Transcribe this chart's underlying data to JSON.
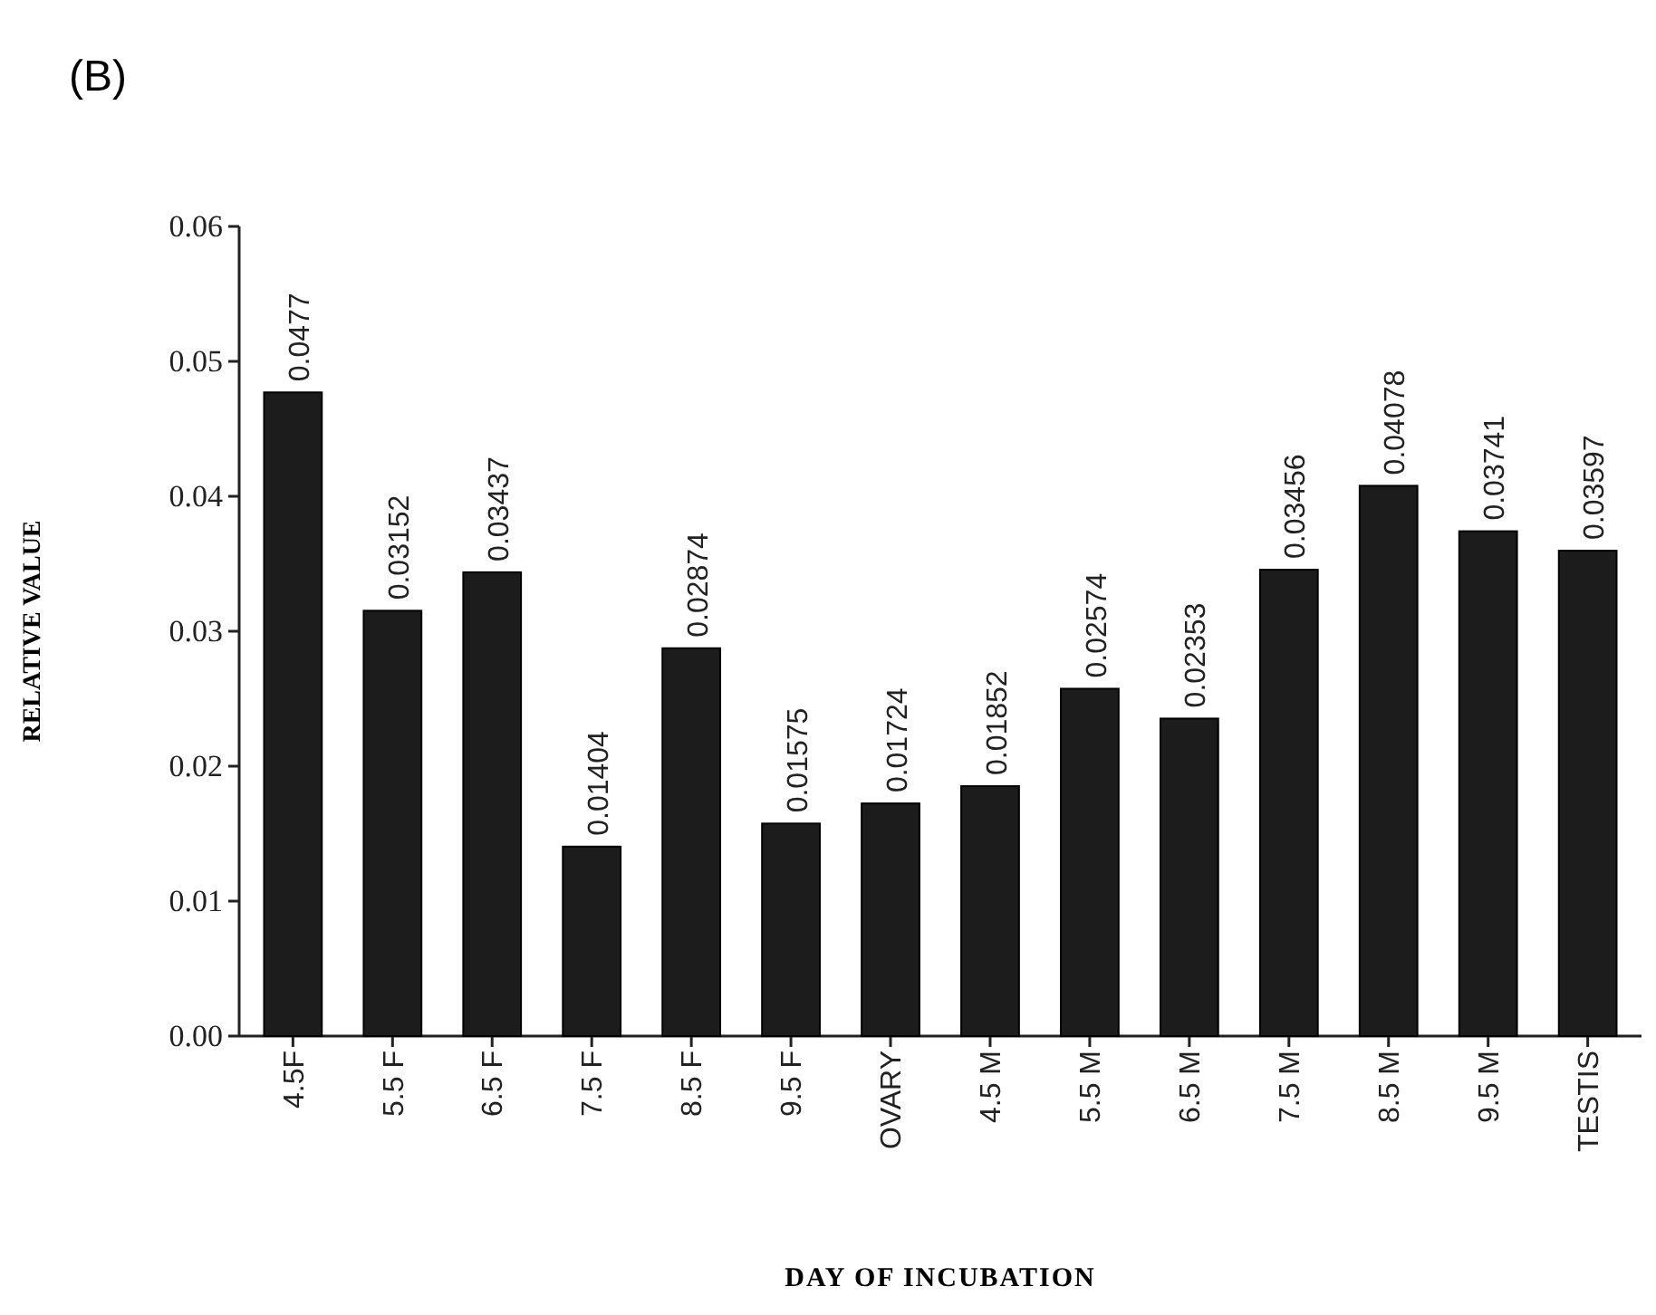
{
  "chart_data": {
    "type": "bar",
    "title": "(B)",
    "xlabel": "DAY OF INCUBATION",
    "ylabel": "RELATIVE VALUE",
    "categories": [
      "4.5F",
      "5.5 F",
      "6.5 F",
      "7.5 F",
      "8.5 F",
      "9.5 F",
      "OVARY",
      "4.5 M",
      "5.5 M",
      "6.5 M",
      "7.5 M",
      "8.5 M",
      "9.5 M",
      "TESTIS"
    ],
    "values": [
      0.0477,
      0.03152,
      0.03437,
      0.01404,
      0.02874,
      0.01575,
      0.01724,
      0.01852,
      0.02574,
      0.02353,
      0.03456,
      0.04078,
      0.03741,
      0.03597
    ],
    "color": "#1c1c1c",
    "data_labels": true,
    "ylim": [
      0,
      0.06
    ],
    "yticks": [
      {
        "value": 0,
        "label": "0.00"
      },
      0.01,
      0.02,
      0.03,
      0.04,
      0.05,
      0.06
    ],
    "grid": false
  }
}
